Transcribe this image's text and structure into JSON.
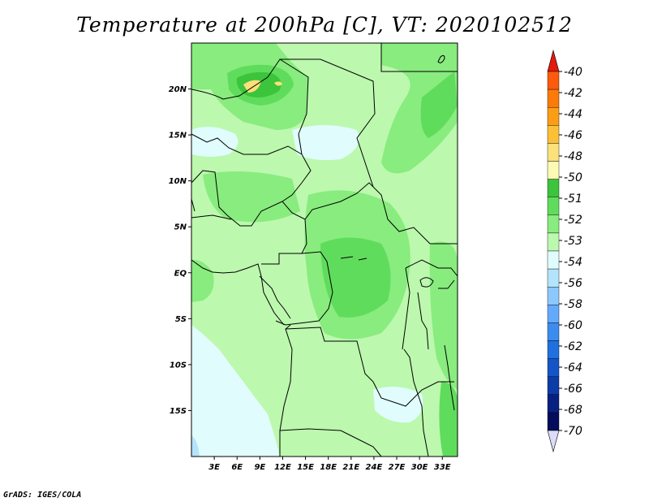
{
  "title": "Temperature at 200hPa [C], VT: 2020102512",
  "credit": "GrADS: IGES/COLA",
  "map": {
    "lon_range": [
      0,
      35
    ],
    "lat_range": [
      -20,
      25
    ],
    "lat_ticks": [
      {
        "lat": 20,
        "label": "20N"
      },
      {
        "lat": 15,
        "label": "15N"
      },
      {
        "lat": 10,
        "label": "10N"
      },
      {
        "lat": 5,
        "label": "5N"
      },
      {
        "lat": 0,
        "label": "EQ"
      },
      {
        "lat": -5,
        "label": "5S"
      },
      {
        "lat": -10,
        "label": "10S"
      },
      {
        "lat": -15,
        "label": "15S"
      }
    ],
    "lon_ticks": [
      {
        "lon": 3,
        "label": "3E"
      },
      {
        "lon": 6,
        "label": "6E"
      },
      {
        "lon": 9,
        "label": "9E"
      },
      {
        "lon": 12,
        "label": "12E"
      },
      {
        "lon": 15,
        "label": "15E"
      },
      {
        "lon": 18,
        "label": "18E"
      },
      {
        "lon": 21,
        "label": "21E"
      },
      {
        "lon": 24,
        "label": "24E"
      },
      {
        "lon": 27,
        "label": "27E"
      },
      {
        "lon": 30,
        "label": "30E"
      },
      {
        "lon": 33,
        "label": "33E"
      }
    ]
  },
  "colorbar": {
    "levels": [
      {
        "label": "-40",
        "color": "#fc3a12"
      },
      {
        "label": "-42",
        "color": "#fc5a0c"
      },
      {
        "label": "-44",
        "color": "#fc7a08"
      },
      {
        "label": "-46",
        "color": "#fc9e14"
      },
      {
        "label": "-48",
        "color": "#fcc036"
      },
      {
        "label": "-50",
        "color": "#fce07a"
      },
      {
        "label": "-51",
        "color": "#fcfab4"
      },
      {
        "label": "-52",
        "color": "#3cc43c"
      },
      {
        "label": "-53",
        "color": "#60dc5c"
      },
      {
        "label": "-54",
        "color": "#88ec7e"
      },
      {
        "label": "-56",
        "color": "#bcf8ae"
      },
      {
        "label": "-58",
        "color": "#e0fcfc"
      },
      {
        "label": "-60",
        "color": "#b4e4fc"
      },
      {
        "label": "-62",
        "color": "#8cc8fc"
      },
      {
        "label": "-64",
        "color": "#64aafc"
      },
      {
        "label": "-66",
        "color": "#3c8cf0"
      },
      {
        "label": "-68",
        "color": "#2070e0"
      },
      {
        "label": "-70",
        "color": "#1456c8"
      }
    ],
    "extra_colors": [
      "#0c3ca8",
      "#082080",
      "#040c5c"
    ],
    "top_arrow_color": "#e21a0c",
    "bottom_arrow_color": "#dcdcf8"
  }
}
